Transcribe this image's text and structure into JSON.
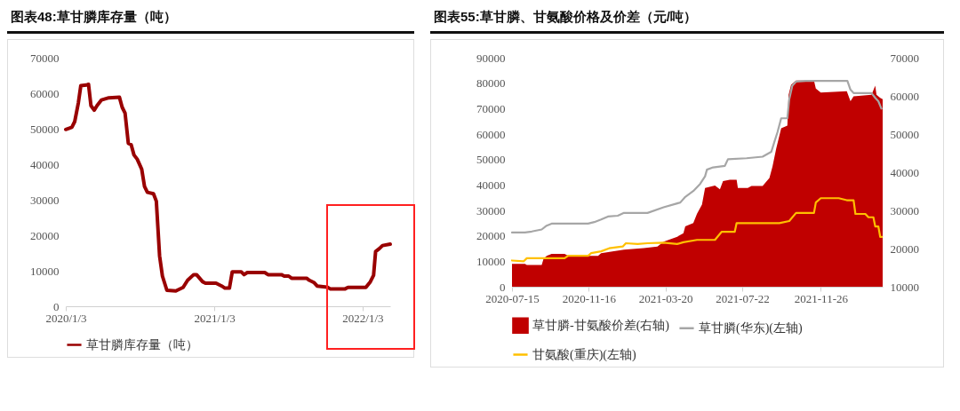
{
  "chart_data": [
    {
      "type": "line",
      "title": "图表48:草甘膦库存量（吨）",
      "legend": "bottom",
      "xlim": [
        "2020-01-03",
        "2022-03-12"
      ],
      "xticks": [
        {
          "value": "2020-01-03",
          "label": "2020/1/3"
        },
        {
          "value": "2021-01-03",
          "label": "2021/1/3"
        },
        {
          "value": "2022-01-03",
          "label": "2022/1/3"
        }
      ],
      "ylim": [
        0,
        70000
      ],
      "yticks": [
        0,
        10000,
        20000,
        30000,
        40000,
        50000,
        60000,
        70000
      ],
      "x": [
        "2020-01-03",
        "2020-01-18",
        "2020-01-25",
        "2020-02-03",
        "2020-02-09",
        "2020-02-23",
        "2020-02-28",
        "2020-03-05",
        "2020-03-13",
        "2020-03-20",
        "2020-03-31",
        "2020-04-18",
        "2020-05-14",
        "2020-05-21",
        "2020-05-28",
        "2020-06-05",
        "2020-06-12",
        "2020-06-19",
        "2020-06-27",
        "2020-07-08",
        "2020-07-15",
        "2020-07-22",
        "2020-08-06",
        "2020-08-13",
        "2020-08-21",
        "2020-08-28",
        "2020-09-08",
        "2020-09-30",
        "2020-10-18",
        "2020-10-29",
        "2020-11-13",
        "2020-11-20",
        "2020-12-05",
        "2020-12-12",
        "2021-01-07",
        "2021-01-21",
        "2021-01-29",
        "2021-02-09",
        "2021-02-16",
        "2021-03-10",
        "2021-03-17",
        "2021-03-25",
        "2021-05-07",
        "2021-05-15",
        "2021-06-17",
        "2021-06-24",
        "2021-07-05",
        "2021-07-12",
        "2021-08-18",
        "2021-08-25",
        "2021-09-05",
        "2021-09-13",
        "2021-10-08",
        "2021-10-15",
        "2021-11-21",
        "2021-11-28",
        "2022-01-11",
        "2022-01-22",
        "2022-01-30",
        "2022-02-04",
        "2022-02-13",
        "2022-02-21",
        "2022-03-12"
      ],
      "series": [
        {
          "name": "草甘膦库存量（吨）",
          "color": "#990000",
          "values": [
            49800,
            50400,
            52000,
            57300,
            62100,
            62300,
            62500,
            56500,
            55200,
            56500,
            58100,
            58700,
            58900,
            56000,
            54400,
            45900,
            45500,
            42600,
            41400,
            38600,
            33700,
            32100,
            31700,
            29600,
            14200,
            8500,
            4500,
            4300,
            5300,
            7300,
            8900,
            8900,
            6900,
            6500,
            6500,
            5700,
            5100,
            5100,
            9700,
            9700,
            8900,
            9500,
            9500,
            8900,
            8900,
            8500,
            8500,
            7900,
            7900,
            7300,
            6700,
            5700,
            5400,
            4900,
            4900,
            5300,
            5300,
            6900,
            8700,
            15400,
            16200,
            17100,
            17500
          ]
        }
      ]
    },
    {
      "type": "line",
      "title": "图表55:草甘膦、甘氨酸价格及价差（元/吨）",
      "legend": "bottom",
      "xlim": [
        "2020-07-15",
        "2022-03-06"
      ],
      "xticks": [
        "2020-07-15",
        "2020-11-16",
        "2021-03-20",
        "2021-07-22",
        "2021-11-26"
      ],
      "ylim": [
        0,
        90000
      ],
      "yticks": [
        0,
        10000,
        20000,
        30000,
        40000,
        50000,
        60000,
        70000,
        80000,
        90000
      ],
      "y2lim": [
        10000,
        70000
      ],
      "y2ticks": [
        10000,
        20000,
        30000,
        40000,
        50000,
        60000,
        70000
      ],
      "series": [
        {
          "name": "草甘膦-甘氨酸价差(右轴)",
          "type": "area",
          "axis": "y2",
          "color": "#c00000",
          "x": [
            "2020-07-15",
            "2020-08-05",
            "2020-08-08",
            "2020-09-01",
            "2020-09-04",
            "2020-09-09",
            "2020-09-17",
            "2020-10-08",
            "2020-10-14",
            "2020-12-01",
            "2020-12-06",
            "2020-12-22",
            "2021-01-12",
            "2021-02-13",
            "2021-03-07",
            "2021-03-17",
            "2021-04-08",
            "2021-04-18",
            "2021-04-21",
            "2021-05-04",
            "2021-05-10",
            "2021-05-18",
            "2021-05-23",
            "2021-06-08",
            "2021-06-16",
            "2021-06-21",
            "2021-07-02",
            "2021-07-13",
            "2021-07-15",
            "2021-07-31",
            "2021-08-06",
            "2021-08-24",
            "2021-09-04",
            "2021-09-09",
            "2021-09-15",
            "2021-09-23",
            "2021-10-03",
            "2021-10-05",
            "2021-10-09",
            "2021-10-17",
            "2021-11-15",
            "2021-11-18",
            "2021-11-26",
            "2022-01-07",
            "2022-01-13",
            "2022-01-18",
            "2022-02-16",
            "2022-02-22",
            "2022-02-24",
            "2022-03-02",
            "2022-03-06"
          ],
          "values": [
            16000,
            16000,
            15700,
            15700,
            17300,
            18100,
            18600,
            18600,
            18100,
            18100,
            18800,
            19200,
            19700,
            20100,
            20500,
            21800,
            23100,
            24000,
            25800,
            26700,
            29100,
            31500,
            35900,
            36500,
            35500,
            37700,
            38000,
            38000,
            35900,
            35900,
            36400,
            36400,
            38500,
            41500,
            46200,
            51500,
            52200,
            60300,
            62900,
            64000,
            64000,
            61900,
            60900,
            61200,
            58600,
            59900,
            60300,
            62700,
            60300,
            59500,
            59100
          ]
        },
        {
          "name": "草甘膦(华东)(左轴)",
          "type": "line",
          "color": "#a6a6a6",
          "x": [
            "2020-07-15",
            "2020-08-05",
            "2020-08-16",
            "2020-09-01",
            "2020-09-09",
            "2020-09-17",
            "2020-11-15",
            "2020-11-25",
            "2020-12-06",
            "2020-12-17",
            "2021-01-02",
            "2021-01-12",
            "2021-02-19",
            "2021-03-17",
            "2021-04-13",
            "2021-04-21",
            "2021-05-04",
            "2021-05-15",
            "2021-05-23",
            "2021-05-26",
            "2021-06-05",
            "2021-06-24",
            "2021-06-29",
            "2021-07-29",
            "2021-08-24",
            "2021-09-07",
            "2021-09-12",
            "2021-09-17",
            "2021-09-23",
            "2021-10-03",
            "2021-10-06",
            "2021-10-11",
            "2021-10-17",
            "2021-11-02",
            "2022-01-08",
            "2022-01-13",
            "2022-01-18",
            "2022-02-16",
            "2022-02-22",
            "2022-02-27",
            "2022-03-04"
          ],
          "values": [
            21300,
            21300,
            21700,
            22500,
            24000,
            24800,
            24800,
            25400,
            26400,
            27600,
            27900,
            29000,
            29000,
            31200,
            33100,
            35300,
            37600,
            40400,
            43400,
            46000,
            46900,
            47500,
            50100,
            50500,
            51100,
            53000,
            56900,
            60700,
            66200,
            66200,
            73600,
            79000,
            80600,
            80900,
            80900,
            77400,
            76100,
            76100,
            74200,
            72900,
            70000
          ]
        },
        {
          "name": "甘氨酸(重庆)(左轴)",
          "type": "line",
          "color": "#ffc000",
          "x": [
            "2020-07-15",
            "2020-08-03",
            "2020-08-08",
            "2020-10-08",
            "2020-10-14",
            "2020-11-15",
            "2020-11-20",
            "2020-12-06",
            "2020-12-19",
            "2021-01-10",
            "2021-01-15",
            "2021-02-03",
            "2021-02-19",
            "2021-03-17",
            "2021-04-08",
            "2021-04-18",
            "2021-05-10",
            "2021-06-08",
            "2021-06-13",
            "2021-06-19",
            "2021-07-10",
            "2021-07-13",
            "2021-09-20",
            "2021-10-06",
            "2021-10-17",
            "2021-11-15",
            "2021-11-18",
            "2021-11-26",
            "2021-12-25",
            "2022-01-07",
            "2022-01-18",
            "2022-01-21",
            "2022-02-06",
            "2022-02-11",
            "2022-02-19",
            "2022-02-22",
            "2022-02-27",
            "2022-03-02",
            "2022-03-05"
          ],
          "values": [
            10300,
            10000,
            11200,
            11200,
            12200,
            12200,
            13200,
            13900,
            15100,
            15800,
            17100,
            16800,
            17100,
            17300,
            16800,
            17500,
            18400,
            18400,
            19900,
            21600,
            21600,
            25000,
            25000,
            25800,
            29000,
            29000,
            33100,
            34800,
            34800,
            34000,
            34000,
            28600,
            28600,
            27300,
            27300,
            23700,
            23700,
            19600,
            19600
          ]
        }
      ]
    }
  ]
}
